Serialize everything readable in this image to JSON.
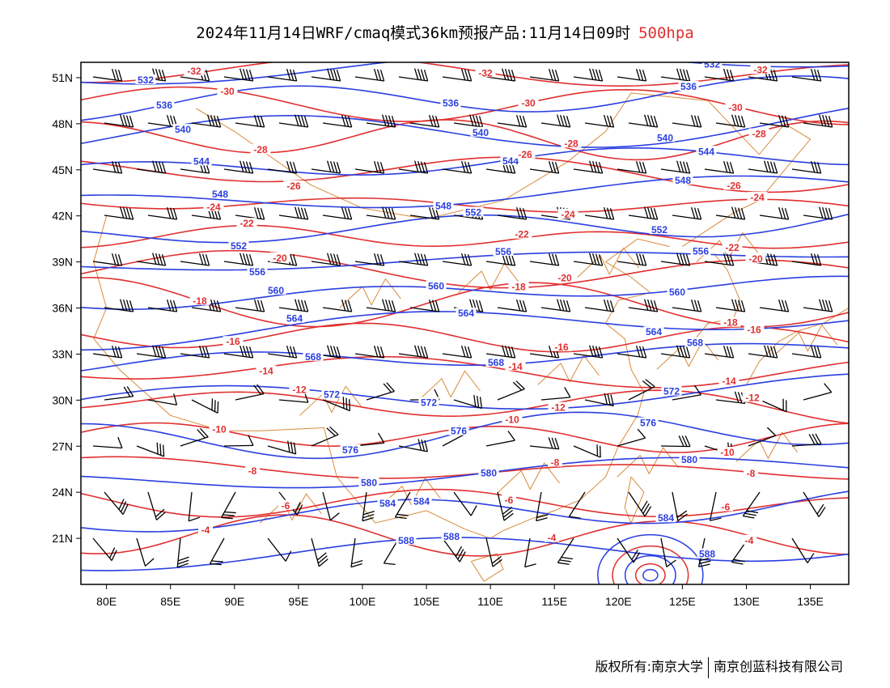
{
  "title": {
    "main": "2024年11月14日WRF/cmaq模式36km预报产品:11月14日09时",
    "level": "500hpa",
    "level_color": "#e03030"
  },
  "footer": {
    "left": "版权所有:南京大学",
    "right": "南京创蓝科技有限公司"
  },
  "map": {
    "lon_range": [
      78,
      138
    ],
    "lat_range": [
      18,
      52
    ],
    "lon_ticks": [
      "80E",
      "85E",
      "90E",
      "95E",
      "100E",
      "105E",
      "110E",
      "115E",
      "120E",
      "125E",
      "130E",
      "135E"
    ],
    "lat_ticks": [
      "51N",
      "48N",
      "45N",
      "42N",
      "39N",
      "36N",
      "33N",
      "30N",
      "27N",
      "24N",
      "21N"
    ],
    "colors": {
      "height_contours": "#2b3fe0",
      "temperature_contours": "#e03030",
      "boundaries": "#d98a3a",
      "wind_barbs": "#000000"
    },
    "height_contours": [
      "532",
      "536",
      "540",
      "544",
      "548",
      "552",
      "556",
      "560",
      "564",
      "568",
      "572",
      "576",
      "580",
      "584",
      "588"
    ],
    "temperature_contours": [
      "-32",
      "-30",
      "-28",
      "-26",
      "-24",
      "-22",
      "-20",
      "-18",
      "-16",
      "-14",
      "-12",
      "-10",
      "-8",
      "-6",
      "-4"
    ]
  }
}
